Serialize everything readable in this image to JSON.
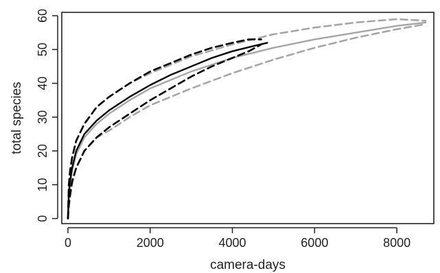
{
  "chart_data": {
    "type": "line",
    "xlabel": "camera-days",
    "ylabel": "total species",
    "xlim": [
      -150,
      8900
    ],
    "ylim": [
      -1.5,
      61
    ],
    "xticks": [
      0,
      2000,
      4000,
      6000,
      8000
    ],
    "yticks": [
      0,
      10,
      20,
      30,
      40,
      50,
      60
    ],
    "xtick_labels": [
      "0",
      "2000",
      "4000",
      "6000",
      "8000"
    ],
    "ytick_labels": [
      "0",
      "10",
      "20",
      "30",
      "40",
      "50",
      "60"
    ],
    "grid": false,
    "legend": "none",
    "series": [
      {
        "color": "#a6a6a6",
        "style": "solid",
        "x": [
          0,
          20,
          50,
          100,
          200,
          400,
          700,
          1000,
          1500,
          2000,
          3000,
          4000,
          5000,
          6000,
          7000,
          8000,
          8700
        ],
        "y": [
          0,
          6,
          10,
          14,
          19,
          24,
          28,
          31,
          35,
          38.5,
          43.5,
          47.5,
          50.5,
          53,
          55,
          57,
          58
        ]
      },
      {
        "color": "#a6a6a6",
        "style": "dashed",
        "x": [
          0,
          20,
          50,
          100,
          200,
          400,
          700,
          1000,
          1500,
          2000,
          3000,
          4000,
          5000,
          6000,
          7000,
          8000,
          8700
        ],
        "y": [
          0,
          9,
          14,
          18,
          23,
          28,
          33,
          36,
          40,
          43,
          48,
          51.5,
          54.5,
          56.5,
          58,
          59,
          58.5
        ]
      },
      {
        "color": "#a6a6a6",
        "style": "dashed",
        "x": [
          0,
          20,
          50,
          100,
          200,
          400,
          700,
          1000,
          1500,
          2000,
          3000,
          4000,
          5000,
          6000,
          7000,
          8000,
          8700
        ],
        "y": [
          0,
          3,
          6,
          10,
          15,
          20,
          24,
          26,
          30,
          33.5,
          38.5,
          43,
          47,
          50.5,
          53.5,
          56,
          57.5
        ]
      },
      {
        "color": "#000000",
        "style": "solid",
        "x": [
          0,
          20,
          50,
          100,
          200,
          400,
          700,
          1000,
          1500,
          2000,
          2500,
          3000,
          3500,
          4000,
          4500,
          4850
        ],
        "y": [
          0,
          7,
          11,
          15,
          20,
          25,
          29,
          32,
          36,
          39.5,
          42.5,
          45,
          47.5,
          49.5,
          51,
          52
        ]
      },
      {
        "color": "#000000",
        "style": "dashed",
        "x": [
          0,
          20,
          50,
          100,
          200,
          400,
          700,
          1000,
          1500,
          2000,
          2500,
          3000,
          3500,
          4000,
          4400,
          4700
        ],
        "y": [
          0,
          10,
          14,
          18,
          23,
          28,
          33,
          36,
          40,
          43.5,
          46,
          48.5,
          50.5,
          52,
          53,
          53
        ]
      },
      {
        "color": "#000000",
        "style": "dashed",
        "x": [
          0,
          20,
          50,
          100,
          200,
          400,
          700,
          1000,
          1500,
          2000,
          2500,
          3000,
          3500,
          4000,
          4400,
          4700
        ],
        "y": [
          0,
          4,
          7,
          11,
          15,
          20,
          24,
          27,
          31,
          35,
          38.5,
          42,
          45,
          47.5,
          49.5,
          51.5
        ]
      }
    ]
  }
}
